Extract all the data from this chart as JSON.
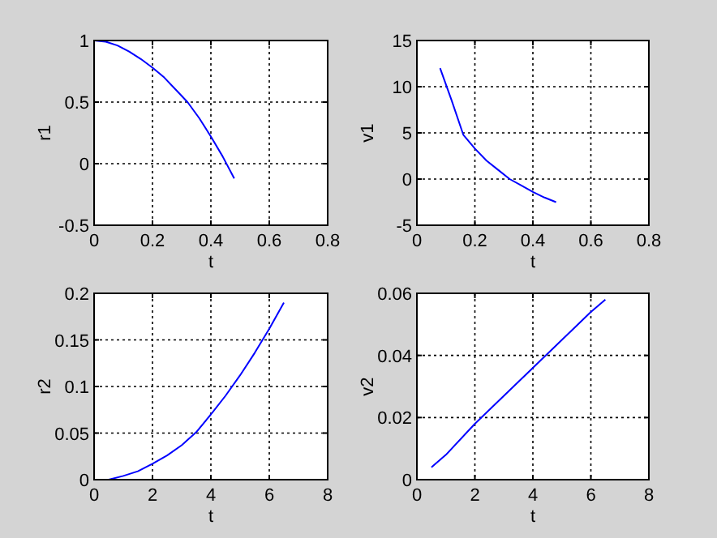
{
  "chart_data": [
    {
      "type": "line",
      "xlabel": "t",
      "ylabel": "r1",
      "xlim": [
        0,
        0.8
      ],
      "ylim": [
        -0.5,
        1
      ],
      "xticks": [
        0,
        0.2,
        0.4,
        0.6,
        0.8
      ],
      "yticks": [
        -0.5,
        0,
        0.5,
        1
      ],
      "grid": true,
      "series": [
        {
          "color": "#0000ff",
          "x": [
            0,
            0.04,
            0.08,
            0.12,
            0.16,
            0.2,
            0.24,
            0.28,
            0.32,
            0.36,
            0.4,
            0.44,
            0.48
          ],
          "values": [
            1,
            0.99,
            0.96,
            0.91,
            0.85,
            0.78,
            0.7,
            0.6,
            0.5,
            0.37,
            0.22,
            0.06,
            -0.12
          ]
        }
      ]
    },
    {
      "type": "line",
      "xlabel": "t",
      "ylabel": "v1",
      "xlim": [
        0,
        0.8
      ],
      "ylim": [
        -5,
        15
      ],
      "xticks": [
        0,
        0.2,
        0.4,
        0.6,
        0.8
      ],
      "yticks": [
        -5,
        0,
        5,
        10,
        15
      ],
      "grid": true,
      "series": [
        {
          "color": "#0000ff",
          "x": [
            0.08,
            0.12,
            0.16,
            0.2,
            0.24,
            0.28,
            0.32,
            0.36,
            0.4,
            0.44,
            0.48
          ],
          "values": [
            12,
            8.5,
            4.8,
            3.3,
            2,
            1,
            0,
            -0.7,
            -1.4,
            -2,
            -2.5
          ]
        }
      ]
    },
    {
      "type": "line",
      "xlabel": "t",
      "ylabel": "r2",
      "xlim": [
        0,
        8
      ],
      "ylim": [
        0,
        0.2
      ],
      "xticks": [
        0,
        2,
        4,
        6,
        8
      ],
      "yticks": [
        0,
        0.05,
        0.1,
        0.15,
        0.2
      ],
      "grid": true,
      "series": [
        {
          "color": "#0000ff",
          "x": [
            0.5,
            1,
            1.5,
            2,
            2.5,
            3,
            3.5,
            4,
            4.5,
            5,
            5.5,
            6,
            6.5
          ],
          "values": [
            0,
            0.004,
            0.009,
            0.017,
            0.026,
            0.037,
            0.051,
            0.07,
            0.09,
            0.112,
            0.136,
            0.162,
            0.19
          ]
        }
      ]
    },
    {
      "type": "line",
      "xlabel": "t",
      "ylabel": "v2",
      "xlim": [
        0,
        8
      ],
      "ylim": [
        0,
        0.06
      ],
      "xticks": [
        0,
        2,
        4,
        6,
        8
      ],
      "yticks": [
        0,
        0.02,
        0.04,
        0.06
      ],
      "grid": true,
      "series": [
        {
          "color": "#0000ff",
          "x": [
            0.5,
            1,
            2,
            3,
            4,
            5,
            6,
            6.5
          ],
          "values": [
            0.004,
            0.008,
            0.018,
            0.027,
            0.036,
            0.045,
            0.054,
            0.058
          ]
        }
      ]
    }
  ]
}
